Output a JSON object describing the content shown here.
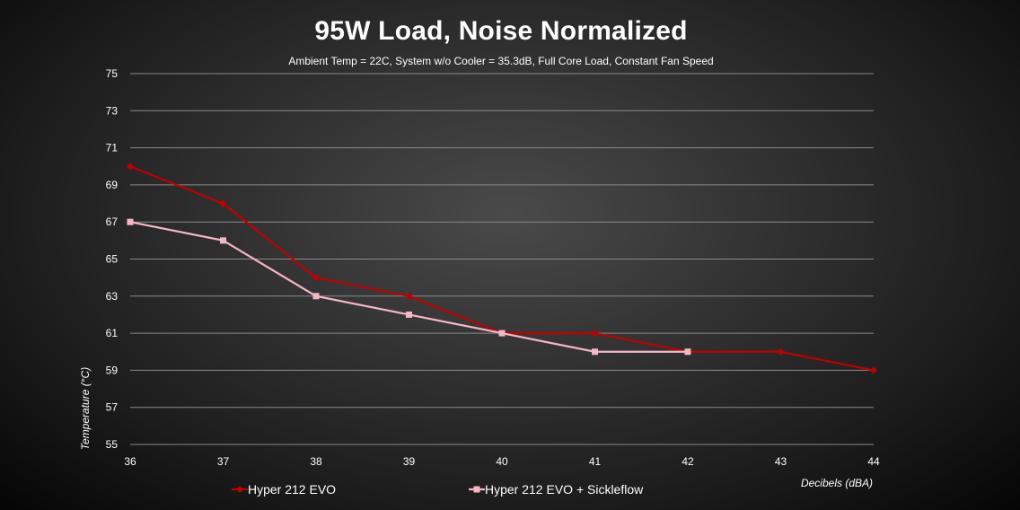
{
  "chart_data": {
    "type": "line",
    "title": "95W Load, Noise Normalized",
    "subtitle": "Ambient Temp = 22C, System w/o Cooler = 35.3dB, Full Core Load, Constant Fan Speed",
    "xlabel": "Decibels (dBA)",
    "ylabel": "Temperature (°C)",
    "x": [
      36,
      37,
      38,
      39,
      40,
      41,
      42,
      43,
      44
    ],
    "xlim": [
      36,
      44
    ],
    "ylim": [
      55,
      75
    ],
    "yticks": [
      55,
      57,
      59,
      61,
      63,
      65,
      67,
      69,
      71,
      73,
      75
    ],
    "xticks": [
      36,
      37,
      38,
      39,
      40,
      41,
      42,
      43,
      44
    ],
    "grid": true,
    "legend_position": "bottom",
    "series": [
      {
        "name": "Hyper 212 EVO",
        "color": "#c00000",
        "marker": "diamond",
        "x": [
          36,
          37,
          38,
          39,
          40,
          41,
          42,
          43,
          44
        ],
        "values": [
          70,
          68,
          64,
          63,
          61,
          61,
          60,
          60,
          59
        ]
      },
      {
        "name": "Hyper 212 EVO + Sickleflow",
        "color": "#f4b8c4",
        "marker": "square",
        "x": [
          36,
          37,
          38,
          39,
          40,
          41,
          42
        ],
        "values": [
          67,
          66,
          63,
          62,
          61,
          60,
          60
        ]
      }
    ]
  }
}
